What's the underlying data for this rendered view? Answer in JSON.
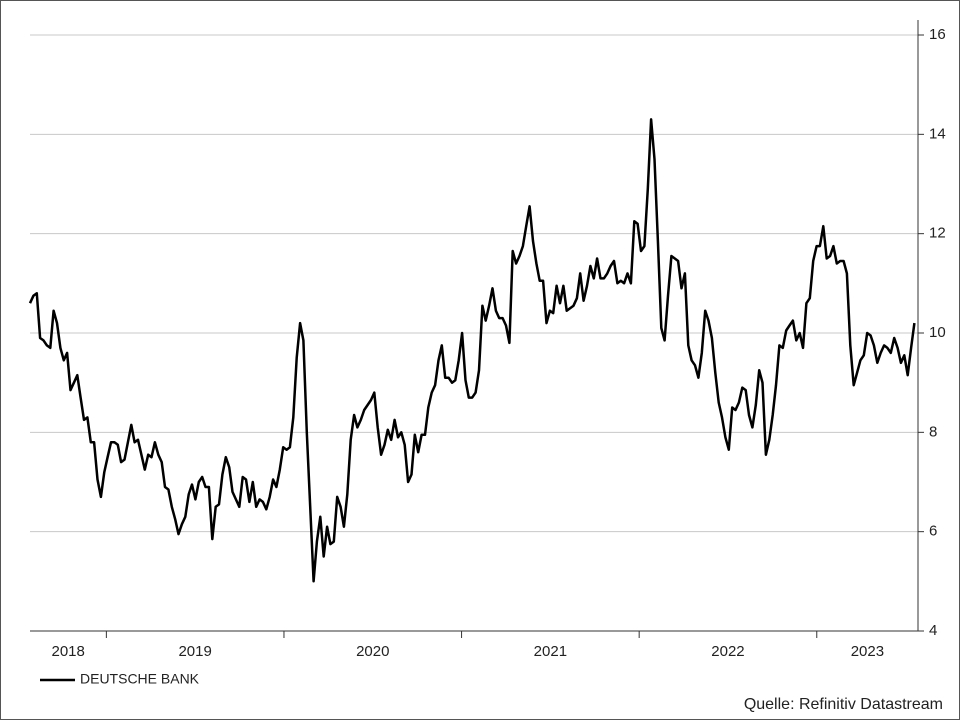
{
  "chart_data": {
    "type": "line",
    "series": [
      {
        "name": "DEUTSCHE BANK",
        "color": "#000000",
        "values": [
          10.6,
          10.75,
          10.8,
          9.9,
          9.85,
          9.75,
          9.7,
          10.45,
          10.2,
          9.7,
          9.45,
          9.6,
          8.85,
          9.0,
          9.15,
          8.7,
          8.25,
          8.3,
          7.8,
          7.8,
          7.05,
          6.7,
          7.2,
          7.5,
          7.8,
          7.8,
          7.75,
          7.4,
          7.45,
          7.8,
          8.15,
          7.8,
          7.85,
          7.55,
          7.25,
          7.55,
          7.5,
          7.8,
          7.55,
          7.4,
          6.9,
          6.85,
          6.5,
          6.25,
          5.95,
          6.15,
          6.3,
          6.75,
          6.95,
          6.65,
          7.0,
          7.1,
          6.9,
          6.9,
          5.85,
          6.5,
          6.55,
          7.15,
          7.5,
          7.3,
          6.8,
          6.65,
          6.5,
          7.1,
          7.05,
          6.6,
          7.0,
          6.5,
          6.65,
          6.6,
          6.45,
          6.7,
          7.05,
          6.9,
          7.25,
          7.7,
          7.65,
          7.7,
          8.3,
          9.5,
          10.2,
          9.85,
          8.0,
          6.5,
          5.0,
          5.8,
          6.3,
          5.5,
          6.1,
          5.75,
          5.8,
          6.7,
          6.5,
          6.1,
          6.75,
          7.85,
          8.35,
          8.1,
          8.25,
          8.45,
          8.55,
          8.65,
          8.8,
          8.1,
          7.55,
          7.75,
          8.05,
          7.85,
          8.25,
          7.9,
          8.0,
          7.75,
          7.0,
          7.15,
          7.95,
          7.6,
          7.95,
          7.95,
          8.5,
          8.8,
          8.95,
          9.45,
          9.75,
          9.1,
          9.1,
          9.0,
          9.05,
          9.45,
          10.0,
          9.05,
          8.7,
          8.7,
          8.8,
          9.25,
          10.55,
          10.25,
          10.55,
          10.9,
          10.45,
          10.3,
          10.3,
          10.15,
          9.8,
          11.65,
          11.4,
          11.55,
          11.75,
          12.15,
          12.55,
          11.85,
          11.4,
          11.05,
          11.05,
          10.2,
          10.45,
          10.4,
          10.95,
          10.6,
          10.95,
          10.45,
          10.5,
          10.55,
          10.7,
          11.2,
          10.65,
          10.95,
          11.35,
          11.1,
          11.5,
          11.1,
          11.1,
          11.2,
          11.35,
          11.45,
          11.0,
          11.05,
          11.0,
          11.2,
          11.0,
          12.25,
          12.2,
          11.65,
          11.75,
          12.9,
          14.3,
          13.5,
          11.85,
          10.1,
          9.85,
          10.75,
          11.55,
          11.5,
          11.45,
          10.9,
          11.2,
          9.75,
          9.45,
          9.35,
          9.1,
          9.6,
          10.45,
          10.25,
          9.9,
          9.2,
          8.6,
          8.3,
          7.9,
          7.65,
          8.5,
          8.45,
          8.6,
          8.9,
          8.85,
          8.35,
          8.1,
          8.55,
          9.25,
          9.0,
          7.55,
          7.85,
          8.35,
          8.95,
          9.75,
          9.7,
          10.05,
          10.15,
          10.25,
          9.85,
          10.0,
          9.7,
          10.6,
          10.7,
          11.45,
          11.75,
          11.75,
          12.15,
          11.5,
          11.55,
          11.75,
          11.4,
          11.45,
          11.45,
          11.2,
          9.75,
          8.95,
          9.2,
          9.45,
          9.55,
          10.0,
          9.95,
          9.75,
          9.4,
          9.6,
          9.75,
          9.7,
          9.6,
          9.9,
          9.7,
          9.4,
          9.55,
          9.15,
          9.7,
          10.2
        ]
      }
    ],
    "xlim": [
      2018.57,
      2023.57
    ],
    "xticks": [
      2019,
      2020,
      2021,
      2022,
      2023
    ],
    "year_labels": [
      2018,
      2019,
      2020,
      2021,
      2022,
      2023
    ],
    "ylim": [
      4,
      16
    ],
    "yticks": [
      4,
      6,
      8,
      10,
      12,
      14,
      16
    ],
    "grid": true,
    "legend": "bottom-left",
    "source": "Quelle: Refinitiv Datastream"
  }
}
